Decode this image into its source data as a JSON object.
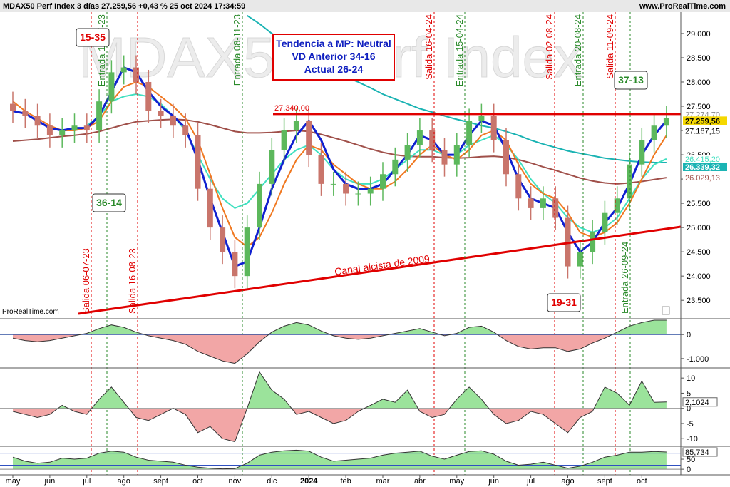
{
  "chart_data": [
    {
      "type": "candlestick",
      "title": "MDAX50 Perf Index 3 días 27.259,56 +0,43 % 25 oct 2024 17:34:59",
      "source": "www.ProRealTime.com",
      "credit": "ProRealTime.com",
      "watermark": "MDAX50 Perf Index",
      "categories": [
        "may",
        null,
        null,
        "jun",
        null,
        null,
        "jul",
        null,
        null,
        "ago",
        null,
        null,
        "sept",
        null,
        null,
        "oct",
        null,
        null,
        "nov",
        null,
        null,
        "dic",
        null,
        null,
        "2024",
        null,
        null,
        "feb",
        null,
        null,
        "mar",
        null,
        null,
        "abr",
        null,
        null,
        "may",
        null,
        null,
        "jun",
        null,
        null,
        "jul",
        null,
        null,
        "ago",
        null,
        null,
        "sept",
        null,
        null,
        "oct",
        null,
        null
      ],
      "open": [
        27550,
        27400,
        27300,
        27100,
        26900,
        27000,
        27100,
        27000,
        27600,
        28200,
        28300,
        28000,
        27400,
        27300,
        27100,
        26900,
        25800,
        25000,
        24500,
        24000,
        25000,
        25900,
        26600,
        27000,
        27200,
        26500,
        25900,
        25900,
        25700,
        25700,
        25800,
        26100,
        26400,
        26700,
        27000,
        26600,
        26300,
        26700,
        27200,
        27300,
        26800,
        26100,
        25600,
        25400,
        25600,
        25200,
        24200,
        24500,
        24900,
        25300,
        25600,
        26300,
        26800,
        27100
      ],
      "high": [
        27800,
        27650,
        27550,
        27350,
        27250,
        27350,
        27350,
        27850,
        28450,
        28550,
        28550,
        28250,
        27650,
        27550,
        27350,
        27150,
        26050,
        25250,
        24750,
        25250,
        26150,
        26850,
        27250,
        27450,
        27450,
        26750,
        26150,
        26150,
        25950,
        26050,
        26350,
        26650,
        26950,
        27250,
        27250,
        26850,
        26950,
        27450,
        27550,
        27550,
        27050,
        26350,
        25850,
        25850,
        25850,
        25450,
        24750,
        25150,
        25550,
        25850,
        26550,
        27050,
        27350,
        27500
      ],
      "low": [
        27150,
        27050,
        26850,
        26650,
        26650,
        26750,
        26750,
        26750,
        27350,
        27950,
        27750,
        27150,
        27050,
        26850,
        26650,
        25550,
        24750,
        24250,
        23750,
        23750,
        24750,
        25650,
        26350,
        26750,
        26250,
        25650,
        25650,
        25450,
        25450,
        25450,
        25550,
        25850,
        26150,
        26450,
        26350,
        26050,
        26050,
        26450,
        26950,
        26550,
        25850,
        25350,
        25150,
        25150,
        24950,
        23950,
        23950,
        24250,
        24650,
        25050,
        25350,
        26050,
        26550,
        26850
      ],
      "close": [
        27400,
        27300,
        27100,
        26900,
        27000,
        27100,
        27000,
        27600,
        28200,
        28300,
        28000,
        27400,
        27300,
        27100,
        26900,
        25800,
        25000,
        24500,
        24000,
        25000,
        25900,
        26600,
        27000,
        27200,
        26500,
        25900,
        25900,
        25700,
        25700,
        25800,
        26100,
        26400,
        26700,
        27000,
        26600,
        26300,
        26700,
        27200,
        27300,
        26800,
        26100,
        25600,
        25400,
        25600,
        25200,
        24200,
        24500,
        24900,
        25300,
        25600,
        26300,
        26800,
        27100,
        27259.56
      ],
      "up_color": "#5cb85c",
      "down_color": "#c9756b",
      "ylim": [
        23150,
        29440
      ],
      "yticks": [
        {
          "value": 29000,
          "label": "29.000"
        },
        {
          "value": 28500,
          "label": "28.500"
        },
        {
          "value": 28000,
          "label": "28.000"
        },
        {
          "value": 27500,
          "label": "27.500"
        },
        {
          "value": 27000,
          "label": "27.000"
        },
        {
          "value": 26500,
          "label": "26.500"
        },
        {
          "value": 26000,
          "label": "26.000"
        },
        {
          "value": 25500,
          "label": "25.500"
        },
        {
          "value": 25000,
          "label": "25.000"
        },
        {
          "value": 24500,
          "label": "24.500"
        },
        {
          "value": 24000,
          "label": "24.000"
        },
        {
          "value": 23500,
          "label": "23.500"
        }
      ],
      "lines": [
        {
          "color": "#a0504a",
          "values": [
            26780,
            26800,
            26820,
            26850,
            26880,
            26900,
            26930,
            26980,
            27050,
            27120,
            27180,
            27200,
            27220,
            27230,
            27220,
            27180,
            27120,
            27050,
            26980,
            26950,
            26950,
            26960,
            26980,
            27000,
            26980,
            26920,
            26850,
            26780,
            26700,
            26620,
            26550,
            26500,
            26470,
            26460,
            26460,
            26440,
            26430,
            26440,
            26460,
            26470,
            26450,
            26400,
            26330,
            26250,
            26180,
            26100,
            26020,
            25960,
            25920,
            25900,
            25920,
            25950,
            25990,
            26029.13
          ]
        },
        {
          "color": "#1ab3b3",
          "values": [
            null,
            null,
            null,
            null,
            null,
            null,
            null,
            null,
            null,
            null,
            null,
            null,
            null,
            null,
            null,
            null,
            null,
            null,
            null,
            29370,
            29200,
            29000,
            28850,
            28700,
            28550,
            28400,
            28250,
            28100,
            28000,
            27880,
            27750,
            27650,
            27550,
            27450,
            27380,
            27300,
            27230,
            27170,
            27100,
            27050,
            26980,
            26900,
            26800,
            26720,
            26650,
            26580,
            26530,
            26480,
            26430,
            26400,
            26370,
            26350,
            26340,
            26339.32
          ]
        },
        {
          "color": "#40e0c0",
          "values": [
            null,
            null,
            null,
            null,
            null,
            null,
            27100,
            27300,
            27600,
            27700,
            27750,
            27700,
            27550,
            27300,
            27000,
            26500,
            26000,
            25600,
            25400,
            25500,
            25800,
            26100,
            26400,
            26600,
            26700,
            26500,
            26200,
            26000,
            25900,
            25900,
            26000,
            26200,
            26400,
            26600,
            26600,
            26500,
            26500,
            26700,
            26800,
            26900,
            26700,
            26400,
            26000,
            25700,
            25500,
            25200,
            25000,
            24900,
            25000,
            25200,
            25600,
            26000,
            26300,
            26415.2
          ]
        },
        {
          "color": "#f07820",
          "values": [
            27600,
            27400,
            27250,
            27100,
            27000,
            27000,
            27050,
            27200,
            27600,
            27900,
            28000,
            27900,
            27700,
            27500,
            27250,
            26800,
            26100,
            25400,
            24800,
            24600,
            24800,
            25300,
            25900,
            26400,
            26700,
            26600,
            26300,
            26100,
            25900,
            25800,
            25800,
            25950,
            26200,
            26500,
            26700,
            26500,
            26400,
            26600,
            26900,
            27000,
            26800,
            26300,
            25900,
            25700,
            25600,
            25300,
            24900,
            24800,
            24900,
            25100,
            25500,
            26000,
            26500,
            26900
          ]
        },
        {
          "color": "#1020d0",
          "values": [
            27400,
            27350,
            27200,
            27050,
            27000,
            27050,
            27050,
            27300,
            27800,
            28300,
            28200,
            27800,
            27500,
            27300,
            27050,
            26400,
            25600,
            24900,
            24200,
            24300,
            25000,
            25800,
            26400,
            26900,
            27200,
            26800,
            26200,
            25900,
            25800,
            25800,
            25900,
            26200,
            26500,
            26900,
            26800,
            26500,
            26500,
            26900,
            27200,
            27100,
            26600,
            26000,
            25600,
            25500,
            25400,
            24900,
            24500,
            24700,
            25100,
            25400,
            25900,
            26500,
            26900,
            27200
          ]
        }
      ],
      "price_tags": [
        {
          "value": 27274.7,
          "label": "27.274,70",
          "color": "#888888"
        },
        {
          "value": 27259.56,
          "label": "27.259,56",
          "color": "#f5d800"
        },
        {
          "value": 27167.15,
          "label": "27.167,15",
          "color": "#ffffff"
        },
        {
          "value": 26415.2,
          "label": "26.415,20",
          "color": "#40e0c0"
        },
        {
          "value": 26339.32,
          "label": "26.339,32",
          "color": "#1ab3b3"
        },
        {
          "value": 26029.13,
          "label": "26.029,13",
          "color": "#a0504a"
        }
      ],
      "hline": {
        "value": 27340,
        "label": "27.340,00",
        "color": "#e00000"
      },
      "trendline_label": "Canal alcista de 2009",
      "signals": [
        {
          "label": "Salida 06-07-23",
          "color": "#e00000"
        },
        {
          "label": "Entrada 19-07-23",
          "color": "#2a8a2a"
        },
        {
          "label": "Salida 16-08-23",
          "color": "#e00000"
        },
        {
          "label": "Entrada 08-11-23",
          "color": "#2a8a2a"
        },
        {
          "label": "Salida 16-04-24",
          "color": "#e00000"
        },
        {
          "label": "Entrada 15-04-24",
          "color": "#2a8a2a"
        },
        {
          "label": "Salida 02-08-24",
          "color": "#e00000"
        },
        {
          "label": "Entrada 20-08-24",
          "color": "#2a8a2a"
        },
        {
          "label": "Salida 11-09-24",
          "color": "#e00000"
        },
        {
          "label": "Entrada 26-09-24",
          "color": "#2a8a2a"
        }
      ],
      "boxes": [
        {
          "label": "15-35",
          "color": "#e00000"
        },
        {
          "label": "36-14",
          "color": "#2a8a2a"
        },
        {
          "label": "19-31",
          "color": "#e00000"
        },
        {
          "label": "37-13",
          "color": "#2a8a2a"
        }
      ],
      "info_box": [
        "Tendencia a MP: Neutral",
        "VD Anterior 34-16",
        "Actual 26-24"
      ]
    },
    {
      "type": "oscillator",
      "values": [
        -150,
        -250,
        -300,
        -250,
        -150,
        -50,
        50,
        250,
        400,
        300,
        100,
        -50,
        -150,
        -250,
        -400,
        -700,
        -900,
        -1100,
        -1200,
        -800,
        -300,
        100,
        350,
        500,
        400,
        150,
        -50,
        -150,
        -200,
        -150,
        -50,
        50,
        150,
        250,
        100,
        -50,
        50,
        300,
        350,
        100,
        -250,
        -500,
        -600,
        -550,
        -550,
        -700,
        -600,
        -350,
        -150,
        100,
        350,
        500,
        600,
        600
      ],
      "ylim": [
        -1360,
        600
      ],
      "yticks": [
        0,
        {
          "value": -1000,
          "label": "-1.000"
        }
      ]
    },
    {
      "type": "oscillator",
      "values": [
        -1,
        -2,
        -3,
        -2,
        1,
        -1,
        -2,
        3,
        7,
        2,
        -3,
        -4,
        -2,
        0,
        -2,
        -8,
        -6,
        -10,
        -11,
        0,
        12,
        6,
        3,
        -2,
        -1,
        -3,
        -5,
        -4,
        -1,
        1,
        3,
        2,
        6,
        -1,
        -3,
        -2,
        3,
        7,
        3,
        -2,
        -5,
        -4,
        -1,
        -2,
        -5,
        -8,
        -3,
        -1,
        7,
        5,
        1,
        9,
        2,
        2.1024
      ],
      "ylim": [
        -12.3,
        13.1
      ],
      "yticks": [
        10,
        5,
        0,
        -5,
        -10
      ],
      "tag": {
        "value": 2.1024,
        "label": "2,1024"
      }
    },
    {
      "type": "oscillator",
      "values": [
        60,
        40,
        30,
        35,
        55,
        50,
        55,
        80,
        90,
        85,
        60,
        45,
        40,
        35,
        20,
        10,
        5,
        2,
        3,
        30,
        70,
        85,
        92,
        95,
        90,
        60,
        40,
        45,
        50,
        55,
        70,
        80,
        85,
        90,
        65,
        50,
        70,
        88,
        92,
        75,
        40,
        20,
        25,
        35,
        20,
        5,
        15,
        35,
        60,
        70,
        85,
        85,
        88,
        85.734
      ],
      "ylim": [
        -28,
        107
      ],
      "yticks": [
        50,
        0
      ],
      "levels": [
        80,
        20
      ],
      "tag": {
        "value": 85.734,
        "label": "85,734"
      }
    }
  ]
}
